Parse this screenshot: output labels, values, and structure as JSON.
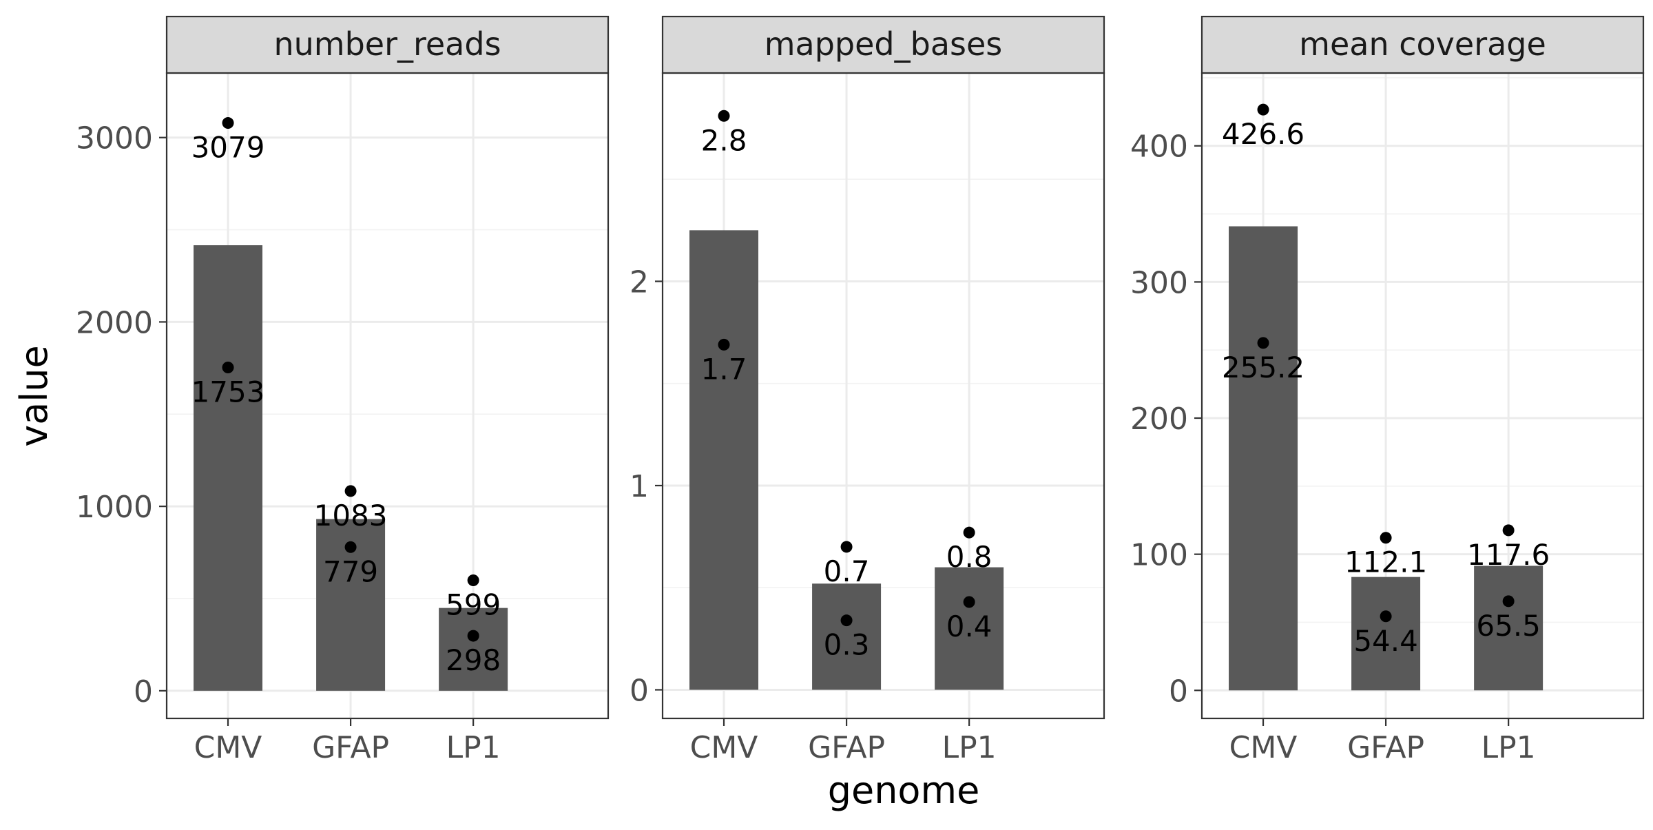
{
  "chart_data": {
    "type": "bar",
    "xlabel": "genome",
    "ylabel": "value",
    "categories": [
      "CMV",
      "GFAP",
      "LP1"
    ],
    "grid": true,
    "colors": {
      "bar": "#595959",
      "point": "#000000"
    },
    "facets": [
      {
        "title": "number_reads",
        "ylim": [
          -150,
          3350
        ],
        "yticks": [
          0,
          1000,
          2000,
          3000
        ],
        "bar_values": [
          2416,
          931,
          449
        ],
        "points": [
          {
            "category": "CMV",
            "value": 3079,
            "label": "3079"
          },
          {
            "category": "CMV",
            "value": 1753,
            "label": "1753"
          },
          {
            "category": "GFAP",
            "value": 1083,
            "label": "1083"
          },
          {
            "category": "GFAP",
            "value": 779,
            "label": "779"
          },
          {
            "category": "LP1",
            "value": 599,
            "label": "599"
          },
          {
            "category": "LP1",
            "value": 298,
            "label": "298"
          }
        ]
      },
      {
        "title": "mapped_bases",
        "ylim": [
          -0.14,
          3.02
        ],
        "yticks": [
          0,
          1,
          2
        ],
        "bar_values": [
          2.25,
          0.52,
          0.6
        ],
        "points": [
          {
            "category": "CMV",
            "value": 2.81,
            "label": "2.8"
          },
          {
            "category": "CMV",
            "value": 1.69,
            "label": "1.7"
          },
          {
            "category": "GFAP",
            "value": 0.7,
            "label": "0.7"
          },
          {
            "category": "GFAP",
            "value": 0.34,
            "label": "0.3"
          },
          {
            "category": "LP1",
            "value": 0.77,
            "label": "0.8"
          },
          {
            "category": "LP1",
            "value": 0.43,
            "label": "0.4"
          }
        ]
      },
      {
        "title": "mean coverage",
        "ylim": [
          -20.6,
          453.5
        ],
        "yticks": [
          0,
          100,
          200,
          300,
          400
        ],
        "bar_values": [
          340.9,
          83.3,
          91.5
        ],
        "points": [
          {
            "category": "CMV",
            "value": 426.6,
            "label": "426.6"
          },
          {
            "category": "CMV",
            "value": 255.2,
            "label": "255.2"
          },
          {
            "category": "GFAP",
            "value": 112.1,
            "label": "112.1"
          },
          {
            "category": "GFAP",
            "value": 54.4,
            "label": "54.4"
          },
          {
            "category": "LP1",
            "value": 117.6,
            "label": "117.6"
          },
          {
            "category": "LP1",
            "value": 65.5,
            "label": "65.5"
          }
        ]
      }
    ]
  }
}
